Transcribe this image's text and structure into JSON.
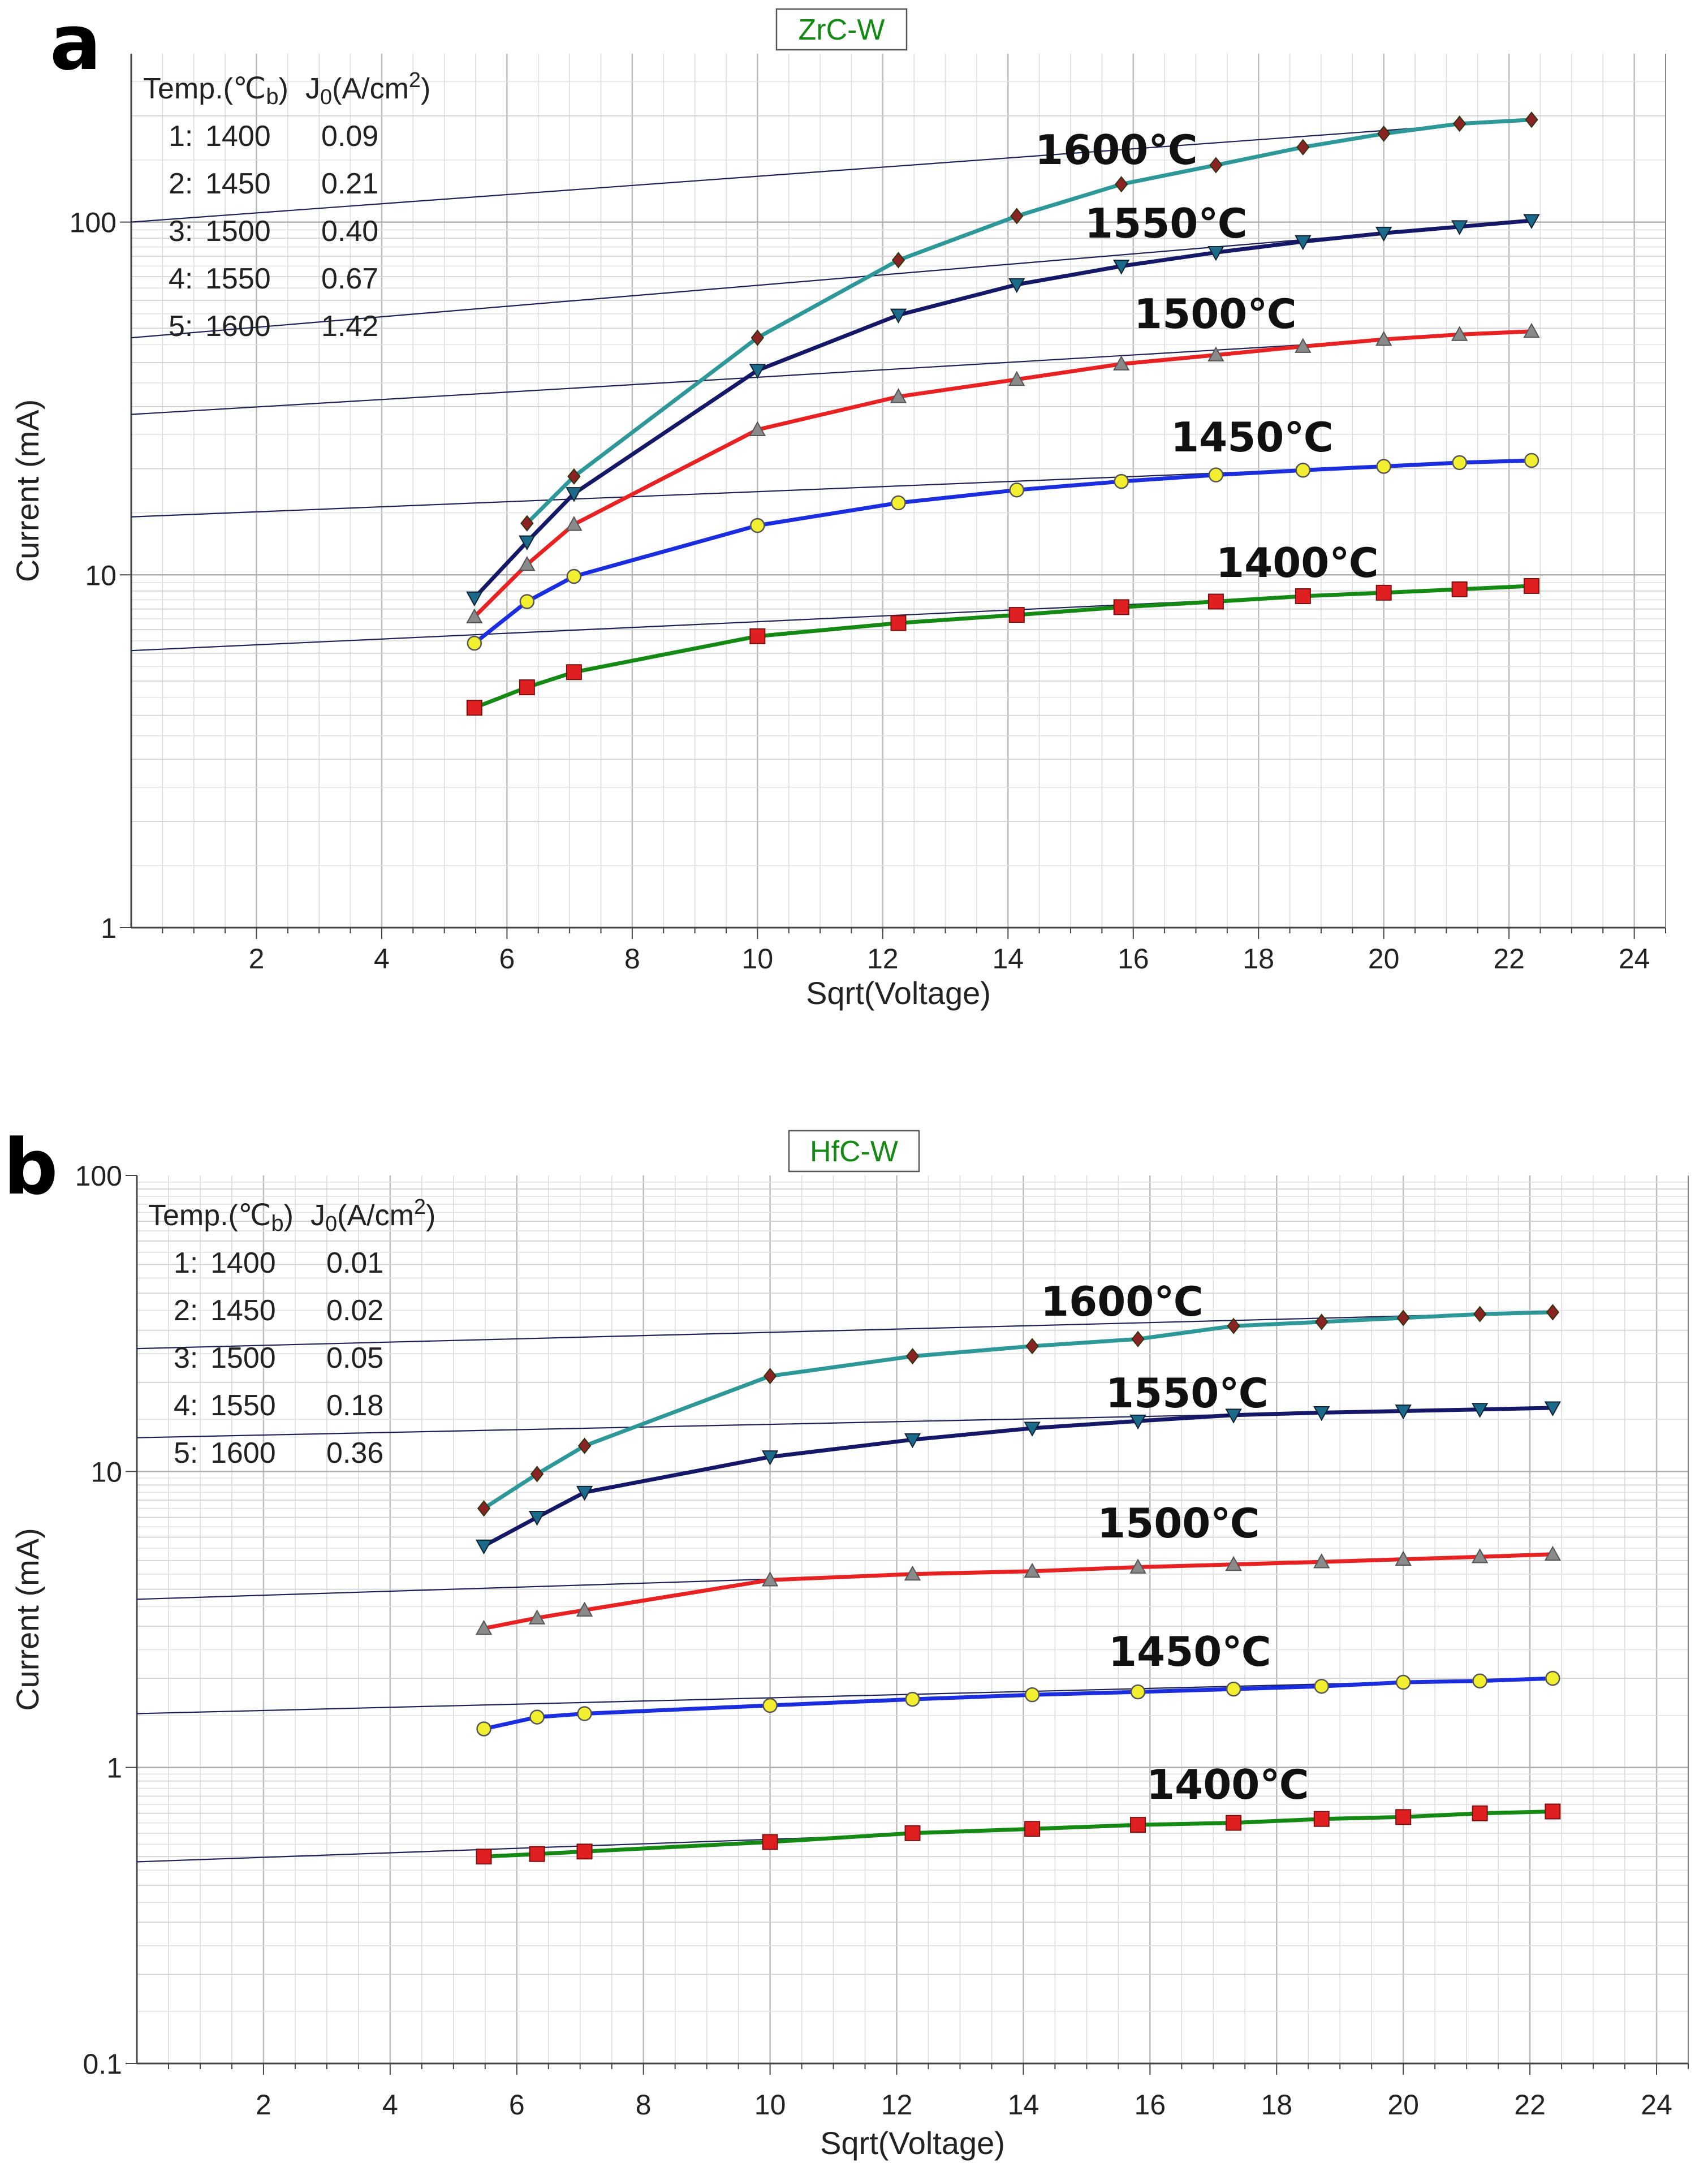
{
  "chart_data": [
    {
      "type": "line",
      "panel": "a",
      "title": "ZrC-W",
      "xlabel": "Sqrt(Voltage)",
      "ylabel": "Current (mA)",
      "yscale": "log",
      "xlim": [
        0,
        24.5
      ],
      "ylim": [
        1,
        300
      ],
      "x_ticks": [
        2,
        4,
        6,
        8,
        10,
        12,
        14,
        16,
        18,
        20,
        22,
        24
      ],
      "x_tick_labels": [
        "2",
        "4",
        "6",
        "8",
        "10",
        "12",
        "14",
        "16",
        "18",
        "20",
        "22",
        "24"
      ],
      "y_ticks": [
        1,
        10,
        100
      ],
      "y_tick_labels": [
        "1",
        "10",
        "100"
      ],
      "grid": true,
      "legend": {
        "header_temp": "Temp.(℃",
        "header_temp_sub": "b",
        "header_temp_close": ")",
        "header_j": "J",
        "header_j_sub": "0",
        "header_j_unit": "(A/cm",
        "header_j_sup": "2",
        "header_j_close": ")",
        "rows": [
          {
            "index": "1:",
            "temp": "1400",
            "j0": "0.09"
          },
          {
            "index": "2:",
            "temp": "1450",
            "j0": "0.21"
          },
          {
            "index": "3:",
            "temp": "1500",
            "j0": "0.40"
          },
          {
            "index": "4:",
            "temp": "1550",
            "j0": "0.67"
          },
          {
            "index": "5:",
            "temp": "1600",
            "j0": "1.42"
          }
        ]
      },
      "x": [
        5.48,
        6.32,
        7.07,
        10.0,
        12.25,
        14.14,
        15.81,
        17.32,
        18.71,
        20.0,
        21.21,
        22.36
      ],
      "series": [
        {
          "name": "1400",
          "label": "1400℃",
          "color": "#148a14",
          "marker": "square",
          "marker_color": "#e02020",
          "values": [
            4.2,
            4.8,
            5.3,
            6.7,
            7.3,
            7.7,
            8.1,
            8.4,
            8.7,
            8.9,
            9.1,
            9.3
          ],
          "fit": [
            6.1,
            9.3
          ]
        },
        {
          "name": "1450",
          "label": "1450℃",
          "color": "#1a2ee0",
          "marker": "circle",
          "marker_color": "#f2ee30",
          "values": [
            6.4,
            8.4,
            9.9,
            13.8,
            16.0,
            17.4,
            18.4,
            19.2,
            19.8,
            20.3,
            20.8,
            21.1
          ],
          "fit": [
            14.6,
            21.1
          ]
        },
        {
          "name": "1500",
          "label": "1500℃",
          "color": "#e82222",
          "marker": "triangle-up",
          "marker_color": "#8a8a8a",
          "values": [
            7.6,
            10.7,
            13.9,
            25.8,
            32.0,
            35.8,
            39.6,
            42.0,
            44.4,
            46.5,
            48.0,
            49.0
          ],
          "fit": [
            28.5,
            49.0
          ]
        },
        {
          "name": "1550",
          "label": "1550℃",
          "color": "#141866",
          "marker": "triangle-down",
          "marker_color": "#1c6a8a",
          "values": [
            8.6,
            12.4,
            17.0,
            38.0,
            54.5,
            66.5,
            75.0,
            82.0,
            88.0,
            93.0,
            97.0,
            101.0
          ],
          "fit": [
            47.0,
            101.0
          ]
        },
        {
          "name": "1600",
          "label": "1600℃",
          "color": "#2e9898",
          "marker": "diamond",
          "marker_color": "#8a2424",
          "values": [
            null,
            14.0,
            19.0,
            47.0,
            78.0,
            104.0,
            128.0,
            145.0,
            163.0,
            178.0,
            190.0,
            195.0
          ],
          "fit": [
            100.0,
            195.0
          ]
        }
      ]
    },
    {
      "type": "line",
      "panel": "b",
      "title": "HfC-W",
      "xlabel": "Sqrt(Voltage)",
      "ylabel": "Current (mA)",
      "yscale": "log",
      "xlim": [
        0,
        24.5
      ],
      "ylim": [
        0.1,
        100
      ],
      "x_ticks": [
        2,
        4,
        6,
        8,
        10,
        12,
        14,
        16,
        18,
        20,
        22,
        24
      ],
      "x_tick_labels": [
        "2",
        "4",
        "6",
        "8",
        "10",
        "12",
        "14",
        "16",
        "18",
        "20",
        "22",
        "24"
      ],
      "y_ticks": [
        0.1,
        1,
        10,
        100
      ],
      "y_tick_labels": [
        "0.1",
        "1",
        "10",
        "100"
      ],
      "grid": true,
      "legend": {
        "header_temp": "Temp.(℃",
        "header_temp_sub": "b",
        "header_temp_close": ")",
        "header_j": "J",
        "header_j_sub": "0",
        "header_j_unit": "(A/cm",
        "header_j_sup": "2",
        "header_j_close": ")",
        "rows": [
          {
            "index": "1:",
            "temp": "1400",
            "j0": "0.01"
          },
          {
            "index": "2:",
            "temp": "1450",
            "j0": "0.02"
          },
          {
            "index": "3:",
            "temp": "1500",
            "j0": "0.05"
          },
          {
            "index": "4:",
            "temp": "1550",
            "j0": "0.18"
          },
          {
            "index": "5:",
            "temp": "1600",
            "j0": "0.36"
          }
        ]
      },
      "x": [
        5.48,
        6.32,
        7.07,
        10.0,
        12.25,
        14.14,
        15.81,
        17.32,
        18.71,
        20.0,
        21.21,
        22.36
      ],
      "series": [
        {
          "name": "1400",
          "label": "1400℃",
          "color": "#148a14",
          "marker": "square",
          "marker_color": "#e02020",
          "values": [
            0.5,
            0.51,
            0.52,
            0.56,
            0.6,
            0.62,
            0.64,
            0.65,
            0.67,
            0.68,
            0.7,
            0.71
          ],
          "fit": [
            0.48,
            0.71
          ]
        },
        {
          "name": "1450",
          "label": "1450℃",
          "color": "#1a2ee0",
          "marker": "circle",
          "marker_color": "#f2ee30",
          "values": [
            1.35,
            1.48,
            1.52,
            1.62,
            1.7,
            1.76,
            1.8,
            1.84,
            1.88,
            1.94,
            1.96,
            2.0
          ],
          "fit": [
            1.52,
            2.0
          ]
        },
        {
          "name": "1500",
          "label": "1500℃",
          "color": "#e82222",
          "marker": "triangle-up",
          "marker_color": "#8a8a8a",
          "values": [
            2.95,
            3.2,
            3.4,
            4.3,
            4.5,
            4.6,
            4.75,
            4.85,
            4.95,
            5.05,
            5.15,
            5.25
          ],
          "fit": [
            3.7,
            5.25
          ]
        },
        {
          "name": "1550",
          "label": "1550℃",
          "color": "#141866",
          "marker": "triangle-down",
          "marker_color": "#1c6a8a",
          "values": [
            5.6,
            7.0,
            8.5,
            11.2,
            12.8,
            14.0,
            14.8,
            15.5,
            15.8,
            16.0,
            16.2,
            16.4
          ],
          "fit": [
            13.0,
            16.4
          ]
        },
        {
          "name": "1600",
          "label": "1600℃",
          "color": "#2e9898",
          "marker": "diamond",
          "marker_color": "#8a2424",
          "values": [
            7.5,
            9.8,
            12.2,
            21.0,
            24.5,
            26.5,
            28.0,
            31.0,
            32.0,
            33.0,
            34.0,
            34.5
          ],
          "fit": [
            26.0,
            34.5
          ]
        }
      ]
    }
  ]
}
